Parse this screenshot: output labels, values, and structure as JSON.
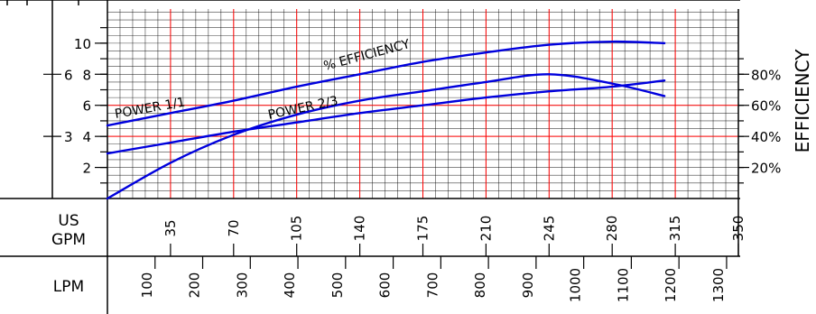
{
  "chart_data": {
    "type": "line",
    "x_unit_label_top": "US",
    "x_unit_label_bottom": "GPM",
    "x2_unit_label": "LPM",
    "right_axis_label": "EFFICIENCY",
    "colors": {
      "curve": "#0000dd",
      "major_grid": "#ff0000",
      "minor_grid": "#000000",
      "axis": "#000000"
    },
    "grid": true,
    "xlim_gpm": [
      0,
      350
    ],
    "x_ticks_gpm": [
      35,
      70,
      105,
      140,
      175,
      210,
      245,
      280,
      315,
      350
    ],
    "x_ticks_gpm_labels": [
      "35",
      "70",
      "105",
      "140",
      "175",
      "210",
      "245",
      "280",
      "315",
      "350"
    ],
    "x2_ticks_lpm": [
      100,
      200,
      300,
      400,
      500,
      600,
      700,
      800,
      900,
      1000,
      1100,
      1200,
      1300
    ],
    "x2_ticks_lpm_labels": [
      "100",
      "200",
      "300",
      "400",
      "500",
      "600",
      "700",
      "800",
      "900",
      "1000",
      "1100",
      "1200",
      "1300"
    ],
    "left_axis_ylim": [
      0,
      12.2
    ],
    "left_ticks_outer": [
      2,
      4,
      6,
      8,
      10
    ],
    "left_ticks_outer_labels": [
      "2",
      "4",
      "6",
      "8",
      "10"
    ],
    "left_ticks_inner": [
      4,
      8
    ],
    "left_ticks_inner_labels": [
      "3",
      "6"
    ],
    "right_ticks_pct": [
      20,
      40,
      60,
      80
    ],
    "right_ticks_labels": [
      "20%",
      "40%",
      "60%",
      "80%"
    ],
    "annotations": [
      {
        "text": "POWER 1/1",
        "series": "power_full"
      },
      {
        "text": "POWER 2/3",
        "series": "power_two_thirds"
      },
      {
        "text": "% EFFICIENCY",
        "series": "efficiency"
      }
    ],
    "series": [
      {
        "key": "power_full",
        "x": [
          0,
          35,
          70,
          105,
          140,
          175,
          210,
          245,
          280,
          309
        ],
        "y": [
          4.7,
          5.5,
          6.3,
          7.2,
          8.0,
          8.8,
          9.4,
          9.9,
          10.1,
          10.0
        ]
      },
      {
        "key": "power_two_thirds",
        "x": [
          0,
          35,
          70,
          105,
          140,
          175,
          210,
          245,
          280,
          309
        ],
        "y": [
          2.9,
          3.6,
          4.3,
          4.9,
          5.5,
          6.0,
          6.5,
          6.9,
          7.2,
          7.6
        ]
      },
      {
        "key": "efficiency",
        "x": [
          0,
          35,
          70,
          105,
          140,
          175,
          210,
          245,
          280,
          309
        ],
        "y_pct": [
          0,
          23,
          41,
          54,
          63,
          69,
          75,
          80,
          74,
          66
        ]
      }
    ]
  }
}
